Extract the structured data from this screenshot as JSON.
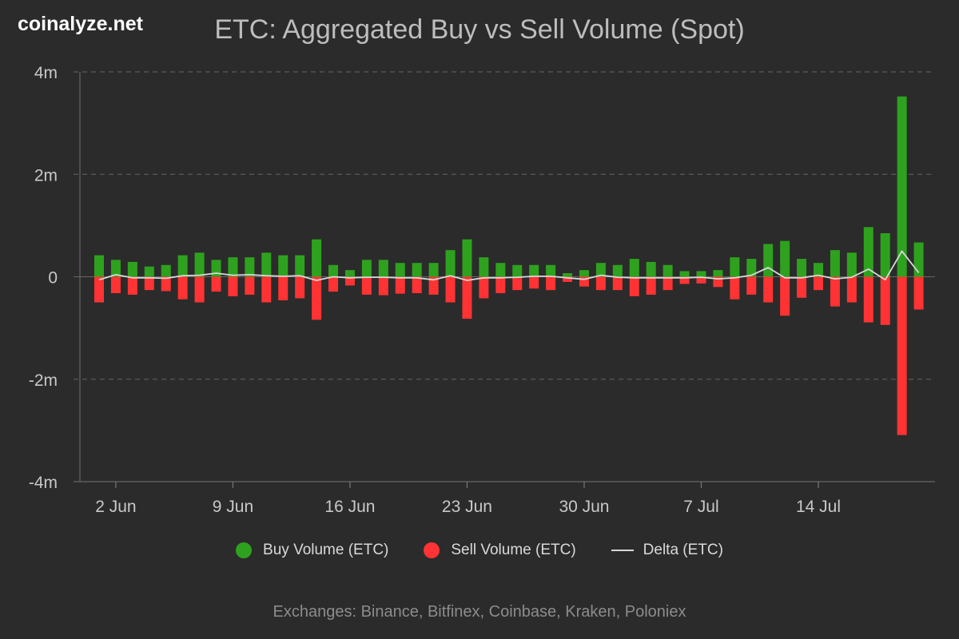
{
  "watermark": "coinalyze.net",
  "title": "ETC: Aggregated Buy vs Sell Volume (Spot)",
  "footer": "Exchanges: Binance, Bitfinex, Coinbase, Kraken, Poloniex",
  "colors": {
    "background": "#2b2b2b",
    "buy": "#2ea21e",
    "sell": "#ff3333",
    "delta": "#d8d8d8",
    "grid": "#5a5a5a",
    "axis_text": "#c8c8c8"
  },
  "chart_data": {
    "type": "bar",
    "title": "ETC: Aggregated Buy vs Sell Volume (Spot)",
    "ylim": [
      -4000000,
      4000000
    ],
    "yticks": [
      {
        "value": 4000000,
        "label": "4m"
      },
      {
        "value": 2000000,
        "label": "2m"
      },
      {
        "value": 0,
        "label": "0"
      },
      {
        "value": -2000000,
        "label": "-2m"
      },
      {
        "value": -4000000,
        "label": "-4m"
      }
    ],
    "xticks": [
      {
        "day": 2,
        "label": "2 Jun"
      },
      {
        "day": 9,
        "label": "9 Jun"
      },
      {
        "day": 16,
        "label": "16 Jun"
      },
      {
        "day": 23,
        "label": "23 Jun"
      },
      {
        "day": 30,
        "label": "30 Jun"
      },
      {
        "day": 37,
        "label": "7 Jul"
      },
      {
        "day": 44,
        "label": "14 Jul"
      }
    ],
    "x_start_day": 1,
    "grid": true,
    "legend_position": "bottom",
    "series": [
      {
        "name": "Buy Volume (ETC)",
        "type": "bar",
        "values": [
          420000,
          330000,
          290000,
          200000,
          230000,
          420000,
          470000,
          330000,
          380000,
          380000,
          470000,
          420000,
          420000,
          730000,
          230000,
          130000,
          330000,
          330000,
          270000,
          270000,
          270000,
          520000,
          730000,
          380000,
          270000,
          230000,
          230000,
          230000,
          70000,
          130000,
          270000,
          230000,
          350000,
          290000,
          230000,
          110000,
          110000,
          130000,
          380000,
          350000,
          640000,
          700000,
          350000,
          270000,
          520000,
          470000,
          970000,
          850000,
          3520000,
          670000
        ]
      },
      {
        "name": "Sell Volume (ETC)",
        "type": "bar",
        "values": [
          -500000,
          -320000,
          -350000,
          -260000,
          -280000,
          -440000,
          -500000,
          -290000,
          -380000,
          -350000,
          -500000,
          -460000,
          -420000,
          -840000,
          -290000,
          -170000,
          -350000,
          -360000,
          -330000,
          -320000,
          -350000,
          -500000,
          -820000,
          -420000,
          -320000,
          -260000,
          -230000,
          -260000,
          -100000,
          -190000,
          -260000,
          -260000,
          -380000,
          -350000,
          -260000,
          -140000,
          -130000,
          -200000,
          -440000,
          -350000,
          -500000,
          -760000,
          -410000,
          -260000,
          -580000,
          -500000,
          -890000,
          -940000,
          -3090000,
          -640000
        ]
      },
      {
        "name": "Delta (ETC)",
        "type": "line",
        "values": [
          -60000,
          40000,
          -20000,
          -20000,
          -30000,
          20000,
          30000,
          70000,
          30000,
          40000,
          20000,
          10000,
          20000,
          -70000,
          0,
          -20000,
          -10000,
          -10000,
          -20000,
          -20000,
          -60000,
          20000,
          -70000,
          -20000,
          -20000,
          -10000,
          10000,
          10000,
          -20000,
          -50000,
          30000,
          -10000,
          -20000,
          -20000,
          -20000,
          -20000,
          -10000,
          -40000,
          -20000,
          30000,
          180000,
          -20000,
          -20000,
          30000,
          -40000,
          -10000,
          150000,
          -60000,
          500000,
          80000
        ]
      }
    ]
  }
}
